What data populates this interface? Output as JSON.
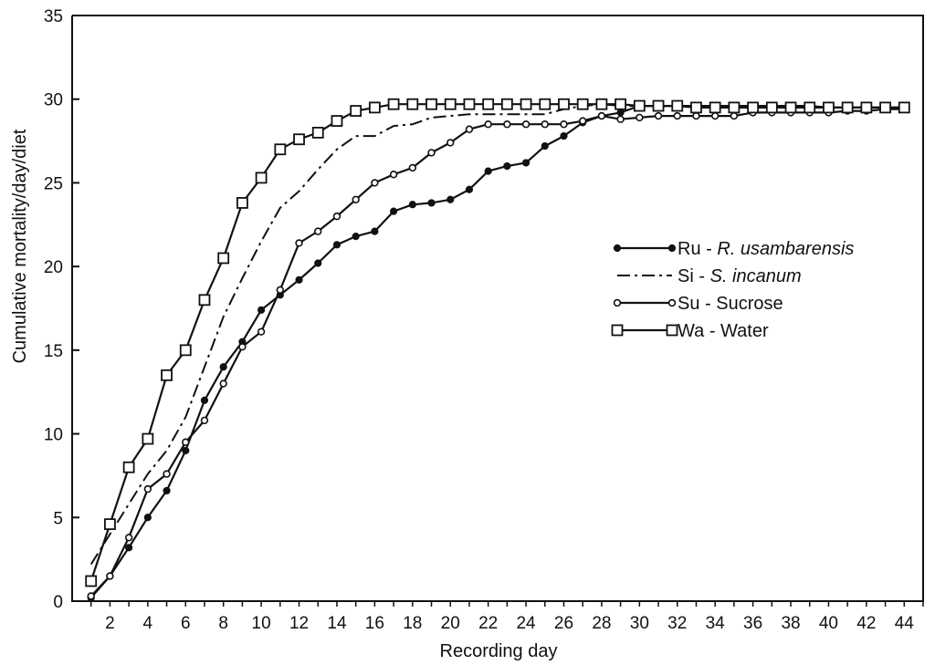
{
  "chart_data": {
    "type": "line",
    "xlabel": "Recording day",
    "ylabel": "Cumulative mortality/day/diet",
    "xlim": [
      0,
      45
    ],
    "ylim": [
      0,
      35
    ],
    "xticks": [
      2,
      4,
      6,
      8,
      10,
      12,
      14,
      16,
      18,
      20,
      22,
      24,
      26,
      28,
      30,
      32,
      34,
      36,
      38,
      40,
      42,
      44
    ],
    "yticks": [
      0,
      5,
      10,
      15,
      20,
      25,
      30,
      35
    ],
    "grid": false,
    "legend_position": "right",
    "series": [
      {
        "name": "Ru",
        "desc": "R. usambarensis",
        "desc_italic": true,
        "marker": "filled-circle",
        "dash": "solid",
        "x": [
          1,
          2,
          3,
          4,
          5,
          6,
          7,
          8,
          9,
          10,
          11,
          12,
          13,
          14,
          15,
          16,
          17,
          18,
          19,
          20,
          21,
          22,
          23,
          24,
          25,
          26,
          27,
          28,
          29,
          30,
          31,
          32,
          33,
          34,
          35,
          36,
          37,
          38,
          39,
          40,
          41,
          42,
          43,
          44
        ],
        "values": [
          0.2,
          1.5,
          3.2,
          5.0,
          6.6,
          9.0,
          12.0,
          14.0,
          15.5,
          17.4,
          18.3,
          19.2,
          20.2,
          21.3,
          21.8,
          22.1,
          23.3,
          23.7,
          23.8,
          24.0,
          24.6,
          25.7,
          26.0,
          26.2,
          27.2,
          27.8,
          28.6,
          29.0,
          29.2,
          29.6,
          29.6,
          29.6,
          29.6,
          29.6,
          29.6,
          29.6,
          29.6,
          29.6,
          29.6,
          29.5,
          29.5,
          29.5,
          29.5,
          29.5
        ]
      },
      {
        "name": "Si",
        "desc": "S. incanum",
        "desc_italic": true,
        "marker": "none",
        "dash": "dashdot",
        "x": [
          1,
          2,
          3,
          4,
          5,
          6,
          7,
          8,
          9,
          10,
          11,
          12,
          13,
          14,
          15,
          16,
          17,
          18,
          19,
          20,
          21,
          22,
          23,
          24,
          25,
          26,
          27,
          28,
          29,
          30,
          31,
          32,
          33,
          34,
          35,
          36,
          37,
          38,
          39,
          40,
          41,
          42,
          43,
          44
        ],
        "values": [
          2.2,
          4.0,
          5.8,
          7.6,
          9.0,
          11.0,
          14.0,
          17.0,
          19.3,
          21.5,
          23.5,
          24.5,
          25.8,
          27.0,
          27.8,
          27.8,
          28.4,
          28.5,
          28.9,
          29.0,
          29.1,
          29.1,
          29.1,
          29.1,
          29.1,
          29.4,
          29.6,
          29.7,
          29.6,
          29.6,
          29.6,
          29.6,
          29.6,
          29.6,
          29.6,
          29.6,
          29.6,
          29.6,
          29.6,
          29.5,
          29.5,
          29.5,
          29.5,
          29.5
        ]
      },
      {
        "name": "Su",
        "desc": "Sucrose",
        "desc_italic": false,
        "marker": "open-circle",
        "dash": "solid",
        "x": [
          1,
          2,
          3,
          4,
          5,
          6,
          7,
          8,
          9,
          10,
          11,
          12,
          13,
          14,
          15,
          16,
          17,
          18,
          19,
          20,
          21,
          22,
          23,
          24,
          25,
          26,
          27,
          28,
          29,
          30,
          31,
          32,
          33,
          34,
          35,
          36,
          37,
          38,
          39,
          40,
          41,
          42,
          43,
          44
        ],
        "values": [
          0.3,
          1.5,
          3.8,
          6.7,
          7.6,
          9.5,
          10.8,
          13.0,
          15.2,
          16.1,
          18.6,
          21.4,
          22.1,
          23.0,
          24.0,
          25.0,
          25.5,
          25.9,
          26.8,
          27.4,
          28.2,
          28.5,
          28.5,
          28.5,
          28.5,
          28.5,
          28.7,
          29.0,
          28.8,
          28.9,
          29.0,
          29.0,
          29.0,
          29.0,
          29.0,
          29.2,
          29.2,
          29.2,
          29.2,
          29.2,
          29.3,
          29.3,
          29.4,
          29.4
        ]
      },
      {
        "name": "Wa",
        "desc": "Water",
        "desc_italic": false,
        "marker": "open-square",
        "dash": "solid",
        "x": [
          1,
          2,
          3,
          4,
          5,
          6,
          7,
          8,
          9,
          10,
          11,
          12,
          13,
          14,
          15,
          16,
          17,
          18,
          19,
          20,
          21,
          22,
          23,
          24,
          25,
          26,
          27,
          28,
          29,
          30,
          31,
          32,
          33,
          34,
          35,
          36,
          37,
          38,
          39,
          40,
          41,
          42,
          43,
          44
        ],
        "values": [
          1.2,
          4.6,
          8.0,
          9.7,
          13.5,
          15.0,
          18.0,
          20.5,
          23.8,
          25.3,
          27.0,
          27.6,
          28.0,
          28.7,
          29.3,
          29.5,
          29.7,
          29.7,
          29.7,
          29.7,
          29.7,
          29.7,
          29.7,
          29.7,
          29.7,
          29.7,
          29.7,
          29.7,
          29.7,
          29.6,
          29.6,
          29.6,
          29.5,
          29.5,
          29.5,
          29.5,
          29.5,
          29.5,
          29.5,
          29.5,
          29.5,
          29.5,
          29.5,
          29.5
        ]
      }
    ]
  }
}
